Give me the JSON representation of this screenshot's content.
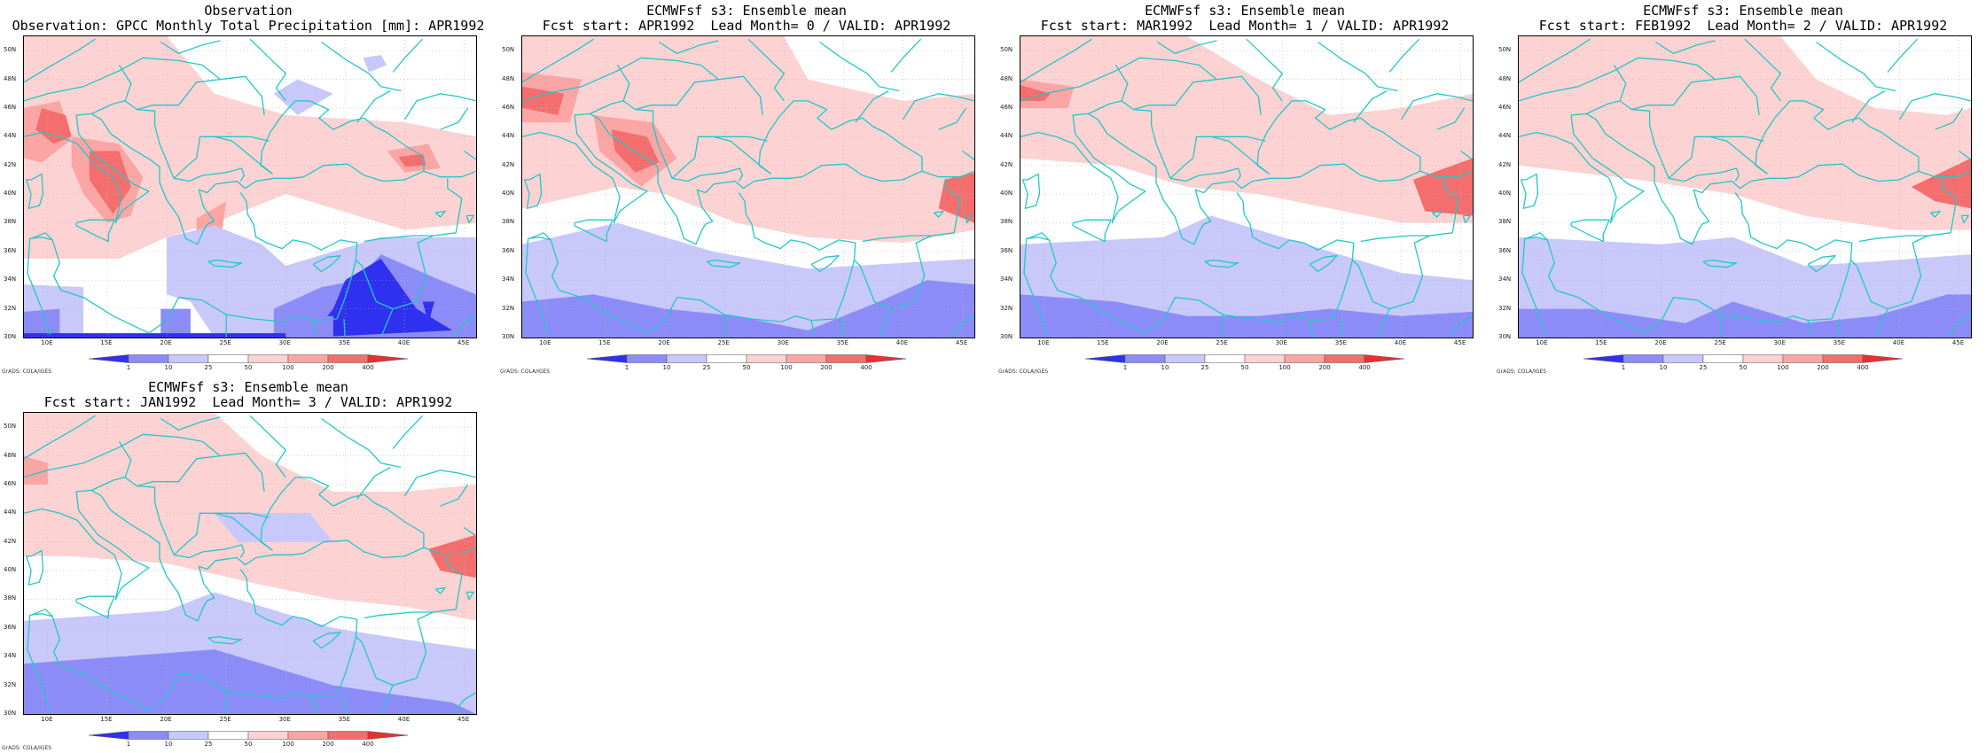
{
  "panels": [
    {
      "title1": "Observation",
      "title2": "Observation: GPCC Monthly Total Precipitation [mm]: APR1992"
    },
    {
      "title1": "ECMWFsf s3: Ensemble mean",
      "title2": "Fcst start: APR1992  Lead Month= 0 / VALID: APR1992"
    },
    {
      "title1": "ECMWFsf s3: Ensemble mean",
      "title2": "Fcst start: MAR1992  Lead Month= 1 / VALID: APR1992"
    },
    {
      "title1": "ECMWFsf s3: Ensemble mean",
      "title2": "Fcst start: FEB1992  Lead Month= 2 / VALID: APR1992"
    },
    {
      "title1": "ECMWFsf s3: Ensemble mean",
      "title2": "Fcst start: JAN1992  Lead Month= 3 / VALID: APR1992"
    }
  ],
  "lat_labels": [
    "50N",
    "48N",
    "46N",
    "44N",
    "42N",
    "40N",
    "38N",
    "36N",
    "34N",
    "32N",
    "30N"
  ],
  "lon_labels": [
    "10E",
    "15E",
    "20E",
    "25E",
    "30E",
    "35E",
    "40E",
    "45E"
  ],
  "colorbar": {
    "labels": [
      "1",
      "10",
      "25",
      "50",
      "100",
      "200",
      "400"
    ],
    "colors": [
      "#3030f0",
      "#8c8cf8",
      "#c8c8fa",
      "#ffffff",
      "#fdd2d2",
      "#fba5a5",
      "#f46e6e",
      "#e83030"
    ]
  },
  "credit": "GrADS: COLA/IGES",
  "map": {
    "lon_range": [
      8,
      46
    ],
    "lat_range": [
      30,
      51
    ],
    "ocean_color": "#ffffff",
    "coast_color": "#22c8c8",
    "grid": true
  }
}
